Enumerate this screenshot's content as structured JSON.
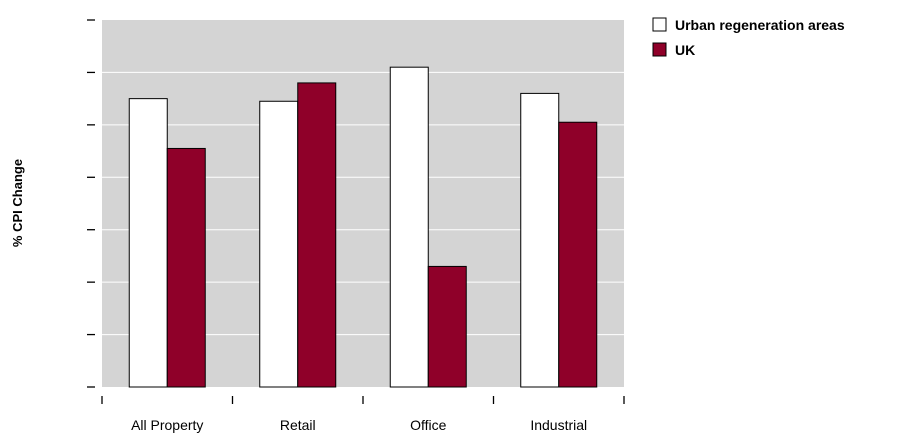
{
  "chart_data": {
    "type": "bar",
    "categories": [
      "All Property",
      "Retail",
      "Office",
      "Industrial"
    ],
    "series": [
      {
        "name": "Urban regeneration areas",
        "values": [
          5.5,
          5.45,
          6.1,
          5.6
        ]
      },
      {
        "name": "UK",
        "values": [
          4.55,
          5.8,
          2.3,
          5.05
        ]
      }
    ],
    "ylabel": "% CPI Change",
    "xlabel": "",
    "ylim": [
      0,
      7
    ],
    "y_ticks": [
      0,
      1,
      2,
      3,
      4,
      5,
      6,
      7
    ],
    "grid": true,
    "legend": "top-right",
    "colors": {
      "plot_bg": "#d4d4d4",
      "grid": "#ffffff",
      "series_0_fill": "#ffffff",
      "series_1_fill": "#8f0029",
      "bar_stroke": "#000000"
    }
  }
}
